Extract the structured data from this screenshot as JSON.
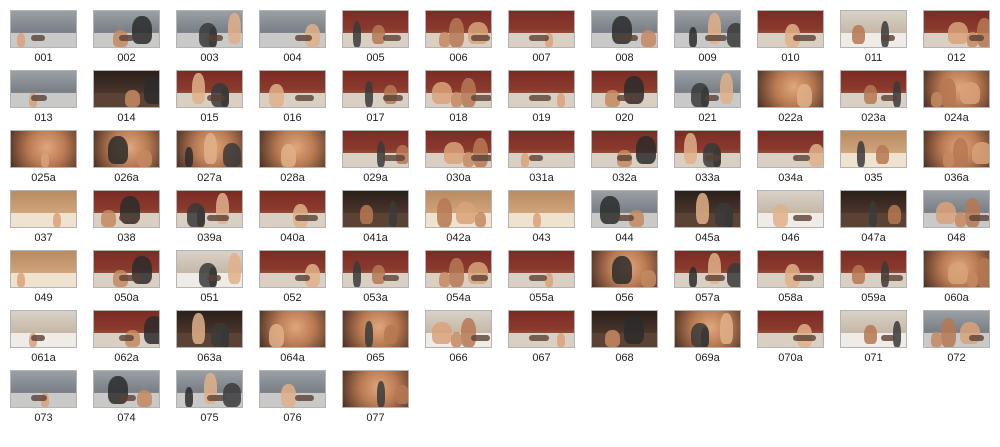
{
  "window": {
    "background": "#ffffff",
    "label_color": "#1e1e1e"
  },
  "thumbnails": [
    {
      "label": "001",
      "scene": "office"
    },
    {
      "label": "002",
      "scene": "office"
    },
    {
      "label": "003",
      "scene": "office"
    },
    {
      "label": "004",
      "scene": "office"
    },
    {
      "label": "005",
      "scene": "room"
    },
    {
      "label": "006",
      "scene": "room"
    },
    {
      "label": "007",
      "scene": "room"
    },
    {
      "label": "008",
      "scene": "office"
    },
    {
      "label": "009",
      "scene": "office"
    },
    {
      "label": "010",
      "scene": "room"
    },
    {
      "label": "011",
      "scene": "bright"
    },
    {
      "label": "012",
      "scene": "room"
    },
    {
      "label": "013",
      "scene": "office"
    },
    {
      "label": "014",
      "scene": "dark"
    },
    {
      "label": "015",
      "scene": "room"
    },
    {
      "label": "016",
      "scene": "room"
    },
    {
      "label": "017",
      "scene": "room"
    },
    {
      "label": "018",
      "scene": "room"
    },
    {
      "label": "019",
      "scene": "room"
    },
    {
      "label": "020",
      "scene": "room"
    },
    {
      "label": "021",
      "scene": "office"
    },
    {
      "label": "022a",
      "scene": "close"
    },
    {
      "label": "023a",
      "scene": "room"
    },
    {
      "label": "024a",
      "scene": "close"
    },
    {
      "label": "025a",
      "scene": "close"
    },
    {
      "label": "026a",
      "scene": "close"
    },
    {
      "label": "027a",
      "scene": "close"
    },
    {
      "label": "028a",
      "scene": "close"
    },
    {
      "label": "029a",
      "scene": "room"
    },
    {
      "label": "030a",
      "scene": "room"
    },
    {
      "label": "031a",
      "scene": "room"
    },
    {
      "label": "032a",
      "scene": "room"
    },
    {
      "label": "033a",
      "scene": "room"
    },
    {
      "label": "034a",
      "scene": "room"
    },
    {
      "label": "035",
      "scene": "wood"
    },
    {
      "label": "036a",
      "scene": "close"
    },
    {
      "label": "037",
      "scene": "wood"
    },
    {
      "label": "038",
      "scene": "room"
    },
    {
      "label": "039a",
      "scene": "room"
    },
    {
      "label": "040a",
      "scene": "room"
    },
    {
      "label": "041a",
      "scene": "dark"
    },
    {
      "label": "042a",
      "scene": "wood"
    },
    {
      "label": "043",
      "scene": "wood"
    },
    {
      "label": "044",
      "scene": "office"
    },
    {
      "label": "045a",
      "scene": "dark"
    },
    {
      "label": "046",
      "scene": "bright"
    },
    {
      "label": "047a",
      "scene": "dark"
    },
    {
      "label": "048",
      "scene": "office"
    },
    {
      "label": "049",
      "scene": "wood"
    },
    {
      "label": "050a",
      "scene": "room"
    },
    {
      "label": "051",
      "scene": "bright"
    },
    {
      "label": "052",
      "scene": "room"
    },
    {
      "label": "053a",
      "scene": "room"
    },
    {
      "label": "054a",
      "scene": "room"
    },
    {
      "label": "055a",
      "scene": "room"
    },
    {
      "label": "056",
      "scene": "close"
    },
    {
      "label": "057a",
      "scene": "room"
    },
    {
      "label": "058a",
      "scene": "room"
    },
    {
      "label": "059a",
      "scene": "room"
    },
    {
      "label": "060a",
      "scene": "close"
    },
    {
      "label": "061a",
      "scene": "bright"
    },
    {
      "label": "062a",
      "scene": "room"
    },
    {
      "label": "063a",
      "scene": "dark"
    },
    {
      "label": "064a",
      "scene": "close"
    },
    {
      "label": "065",
      "scene": "close"
    },
    {
      "label": "066",
      "scene": "bright"
    },
    {
      "label": "067",
      "scene": "room"
    },
    {
      "label": "068",
      "scene": "dark"
    },
    {
      "label": "069a",
      "scene": "close"
    },
    {
      "label": "070a",
      "scene": "room"
    },
    {
      "label": "071",
      "scene": "bright"
    },
    {
      "label": "072",
      "scene": "office"
    },
    {
      "label": "073",
      "scene": "office"
    },
    {
      "label": "074",
      "scene": "office"
    },
    {
      "label": "075",
      "scene": "office"
    },
    {
      "label": "076",
      "scene": "office"
    },
    {
      "label": "077",
      "scene": "close"
    }
  ]
}
